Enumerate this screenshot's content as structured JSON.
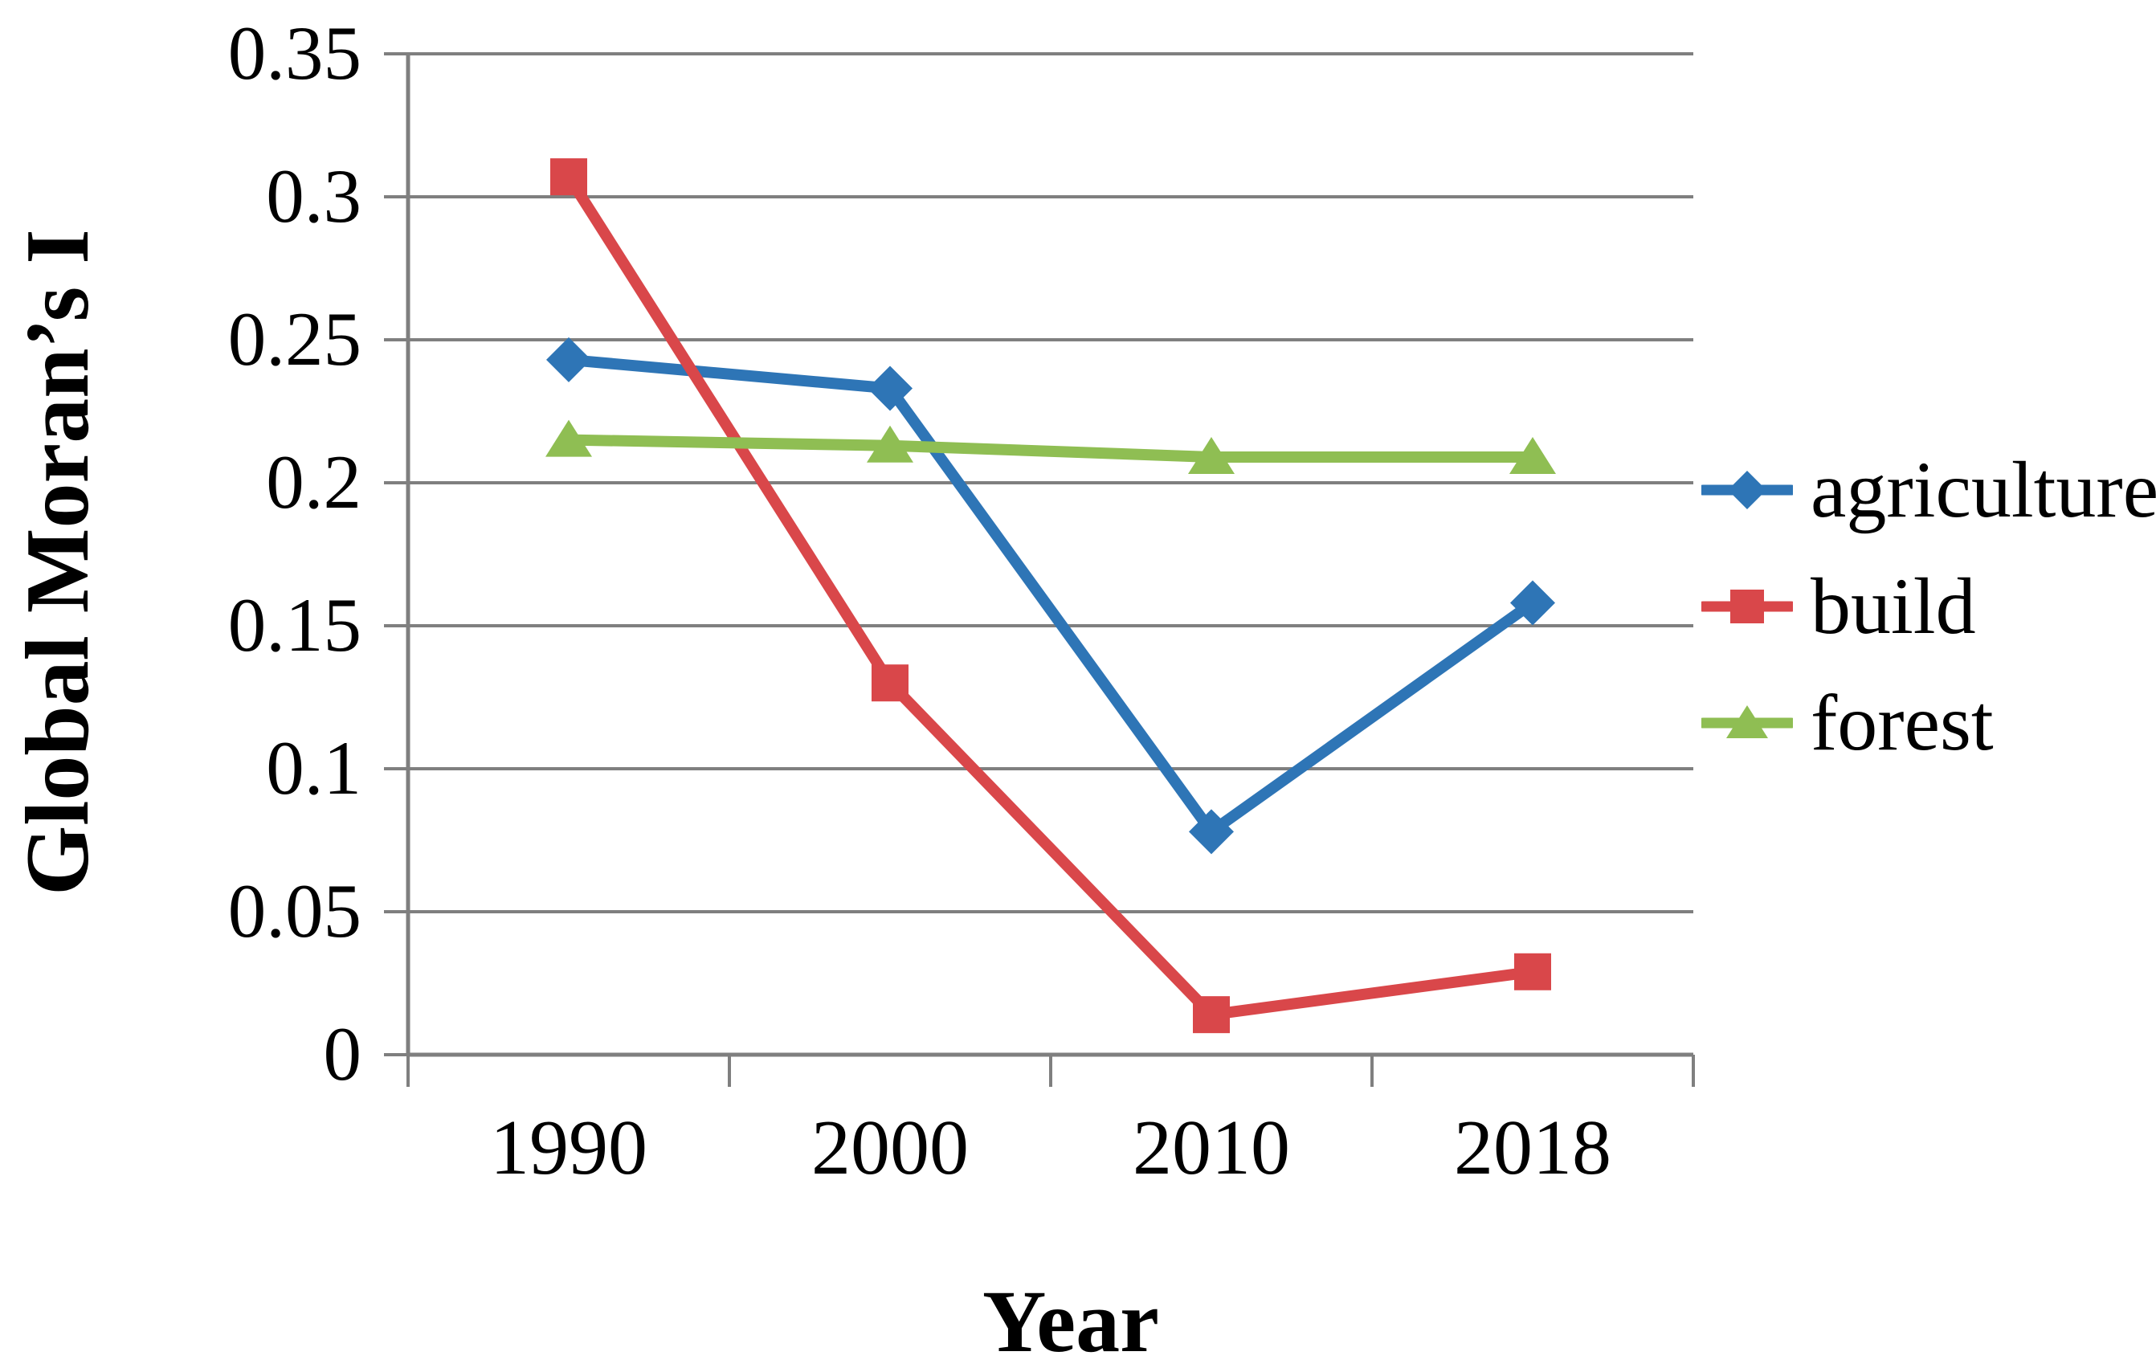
{
  "chart_data": {
    "type": "line",
    "title": "",
    "xlabel": "Year",
    "ylabel": "Global Moran’s I",
    "x_categories": [
      "1990",
      "2000",
      "2010",
      "2018"
    ],
    "series": [
      {
        "name": "agriculture",
        "color": "#2E75B6",
        "marker": "diamond",
        "values": [
          0.243,
          0.233,
          0.078,
          0.158
        ]
      },
      {
        "name": "build",
        "color": "#D9474A",
        "marker": "square",
        "values": [
          0.307,
          0.13,
          0.014,
          0.029
        ]
      },
      {
        "name": "forest",
        "color": "#8FBE53",
        "marker": "triangle",
        "values": [
          0.215,
          0.213,
          0.209,
          0.209
        ]
      }
    ],
    "ylim": [
      0,
      0.35
    ],
    "ytick_step": 0.05,
    "ytick_labels": [
      "0",
      "0.05",
      "0.1",
      "0.15",
      "0.2",
      "0.25",
      "0.3",
      "0.35"
    ],
    "grid": true,
    "grid_color": "#7F7F7F",
    "axis_color": "#7F7F7F",
    "legend_position": "right",
    "legend_entries": [
      "agriculture",
      "build",
      "forest"
    ]
  }
}
